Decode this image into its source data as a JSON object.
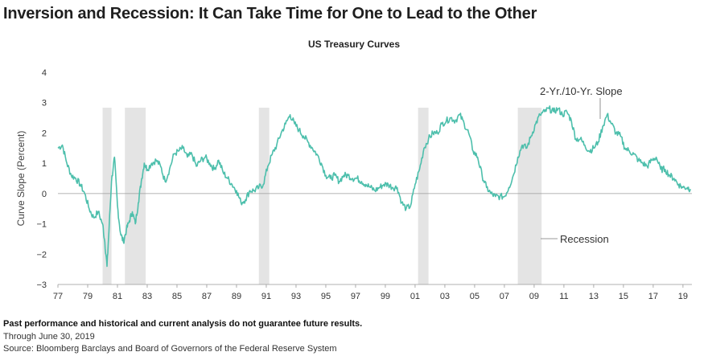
{
  "chart_data": {
    "type": "line",
    "title": "Inversion and Recession: It Can Take Time for One to Lead to the Other",
    "subtitle": "US Treasury Curves",
    "ylabel": "Curve Slope (Percent)",
    "xlabel": "",
    "ylim": [
      -3,
      4
    ],
    "xlim": [
      1977.0,
      2019.6
    ],
    "y_ticks": [
      -3,
      -2,
      -1,
      0,
      1,
      2,
      3,
      4
    ],
    "y_tick_labels": [
      "−3",
      "−2",
      "−1",
      "0",
      "1",
      "2",
      "3",
      "4"
    ],
    "x_ticks": [
      1977,
      1979,
      1981,
      1983,
      1985,
      1987,
      1989,
      1991,
      1993,
      1995,
      1997,
      1999,
      2001,
      2003,
      2005,
      2007,
      2009,
      2011,
      2013,
      2015,
      2017,
      2019
    ],
    "x_tick_labels": [
      "77",
      "79",
      "81",
      "83",
      "85",
      "87",
      "89",
      "91",
      "93",
      "95",
      "97",
      "99",
      "01",
      "03",
      "05",
      "07",
      "09",
      "11",
      "13",
      "15",
      "17",
      "19"
    ],
    "grid": false,
    "zero_line": true,
    "series": [
      {
        "name": "2-Yr./10-Yr. Slope",
        "color": "#4dbfac",
        "x": [
          1977.0,
          1977.3,
          1977.6,
          1977.9,
          1978.2,
          1978.5,
          1978.8,
          1979.1,
          1979.4,
          1979.7,
          1980.0,
          1980.15,
          1980.3,
          1980.45,
          1980.6,
          1980.8,
          1981.0,
          1981.2,
          1981.4,
          1981.6,
          1981.8,
          1982.0,
          1982.2,
          1982.4,
          1982.6,
          1982.8,
          1983.0,
          1983.3,
          1983.6,
          1983.9,
          1984.2,
          1984.5,
          1984.8,
          1985.1,
          1985.4,
          1985.7,
          1986.0,
          1986.3,
          1986.6,
          1986.9,
          1987.2,
          1987.5,
          1987.8,
          1988.1,
          1988.4,
          1988.7,
          1989.0,
          1989.3,
          1989.6,
          1989.9,
          1990.2,
          1990.5,
          1990.8,
          1991.1,
          1991.4,
          1991.7,
          1992.0,
          1992.3,
          1992.6,
          1992.9,
          1993.2,
          1993.5,
          1993.8,
          1994.1,
          1994.4,
          1994.7,
          1995.0,
          1995.3,
          1995.6,
          1995.9,
          1996.2,
          1996.5,
          1996.8,
          1997.1,
          1997.4,
          1997.7,
          1998.0,
          1998.3,
          1998.6,
          1998.9,
          1999.2,
          1999.5,
          1999.8,
          2000.1,
          2000.4,
          2000.7,
          2001.0,
          2001.3,
          2001.6,
          2001.9,
          2002.2,
          2002.5,
          2002.8,
          2003.1,
          2003.4,
          2003.7,
          2004.0,
          2004.3,
          2004.6,
          2004.9,
          2005.2,
          2005.5,
          2005.8,
          2006.1,
          2006.4,
          2006.7,
          2007.0,
          2007.3,
          2007.6,
          2007.9,
          2008.2,
          2008.5,
          2008.8,
          2009.1,
          2009.4,
          2009.7,
          2010.0,
          2010.3,
          2010.6,
          2010.9,
          2011.2,
          2011.5,
          2011.8,
          2012.1,
          2012.4,
          2012.7,
          2013.0,
          2013.3,
          2013.6,
          2013.9,
          2014.2,
          2014.5,
          2014.8,
          2015.1,
          2015.4,
          2015.7,
          2016.0,
          2016.3,
          2016.6,
          2016.9,
          2017.2,
          2017.5,
          2017.8,
          2018.1,
          2018.4,
          2018.7,
          2019.0,
          2019.3,
          2019.5
        ],
        "y": [
          1.5,
          1.6,
          1.0,
          0.6,
          0.5,
          0.3,
          0.0,
          -0.5,
          -0.8,
          -0.6,
          -1.0,
          -1.6,
          -2.4,
          -1.0,
          0.4,
          1.2,
          -0.4,
          -1.3,
          -1.6,
          -1.2,
          -0.9,
          -0.6,
          -1.0,
          -0.3,
          0.4,
          1.0,
          0.8,
          1.0,
          1.1,
          0.9,
          0.4,
          0.8,
          1.3,
          1.4,
          1.5,
          1.2,
          1.3,
          0.9,
          1.1,
          1.2,
          1.0,
          0.8,
          1.1,
          0.7,
          0.5,
          0.3,
          0.1,
          -0.3,
          -0.2,
          0.1,
          0.1,
          0.2,
          0.3,
          0.9,
          1.3,
          1.6,
          2.0,
          2.3,
          2.6,
          2.3,
          2.1,
          1.9,
          1.7,
          1.5,
          1.3,
          1.0,
          0.6,
          0.5,
          0.6,
          0.4,
          0.6,
          0.6,
          0.5,
          0.5,
          0.4,
          0.3,
          0.2,
          0.1,
          0.2,
          0.3,
          0.3,
          0.2,
          0.2,
          -0.3,
          -0.5,
          -0.4,
          0.3,
          0.8,
          1.5,
          1.8,
          2.0,
          2.0,
          2.3,
          2.4,
          2.5,
          2.4,
          2.6,
          2.3,
          2.0,
          1.4,
          1.2,
          0.6,
          0.2,
          0.0,
          -0.1,
          -0.1,
          -0.1,
          0.2,
          0.6,
          1.2,
          1.6,
          1.5,
          1.9,
          2.3,
          2.6,
          2.7,
          2.8,
          2.7,
          2.8,
          2.6,
          2.7,
          2.4,
          1.8,
          1.8,
          1.6,
          1.4,
          1.5,
          1.7,
          2.2,
          2.6,
          2.3,
          2.0,
          1.9,
          1.5,
          1.4,
          1.3,
          1.1,
          1.0,
          0.9,
          1.1,
          1.2,
          0.8,
          0.8,
          0.6,
          0.5,
          0.3,
          0.2,
          0.2,
          0.15
        ]
      }
    ],
    "recessions": [
      {
        "start": 1980.0,
        "end": 1980.6
      },
      {
        "start": 1981.5,
        "end": 1982.9
      },
      {
        "start": 1990.5,
        "end": 1991.2
      },
      {
        "start": 2001.2,
        "end": 2001.9
      },
      {
        "start": 2007.9,
        "end": 2009.5
      }
    ],
    "recession_color": "#e4e4e4",
    "annotations": [
      {
        "text": "2-Yr./10-Yr. Slope",
        "target": "series"
      },
      {
        "text": "Recession",
        "target": "recession"
      }
    ]
  },
  "footer": {
    "disclaimer": "Past performance and historical and current analysis do not guarantee future results.",
    "date_note": "Through June 30, 2019",
    "source": "Source: Bloomberg Barclays and Board of Governors of the Federal Reserve System"
  }
}
